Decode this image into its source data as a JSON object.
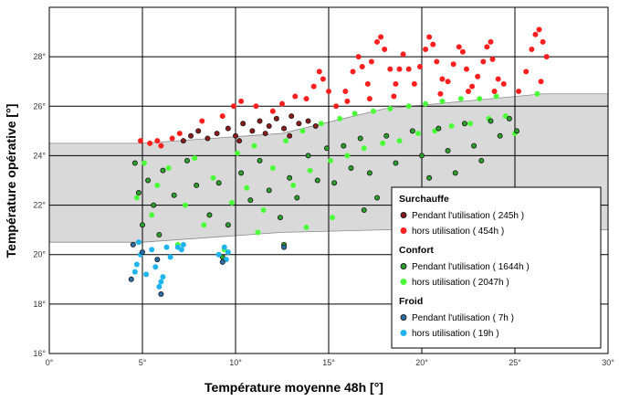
{
  "chart_data": {
    "type": "scatter",
    "xlabel": "Température moyenne 48h [°]",
    "ylabel": "Température opérative [°]",
    "xlim": [
      0,
      30
    ],
    "ylim": [
      16,
      30
    ],
    "x_ticks": [
      "0°",
      "5°",
      "10°",
      "15°",
      "20°",
      "25°",
      "30°"
    ],
    "y_ticks": [
      "16°",
      "18°",
      "20°",
      "22°",
      "24°",
      "26°",
      "28°"
    ],
    "grid": true,
    "comfort_band": [
      {
        "x": 0,
        "lower": 20.5,
        "upper": 24.5
      },
      {
        "x": 5,
        "lower": 20.5,
        "upper": 24.5
      },
      {
        "x": 12.5,
        "lower": 20.9,
        "upper": 24.9
      },
      {
        "x": 18,
        "lower": 21.0,
        "upper": 25.9
      },
      {
        "x": 26.5,
        "lower": 21.0,
        "upper": 26.5
      },
      {
        "x": 30,
        "lower": 21.0,
        "upper": 26.5
      }
    ],
    "band_color": "#d9d9d9",
    "legend": {
      "position": "bottom-right",
      "groups": [
        {
          "title": "Surchauffe",
          "items": [
            {
              "label": "Pendant l'utilisation ( 245h )",
              "series": 0
            },
            {
              "label": "hors utilisation ( 454h )",
              "series": 1
            }
          ]
        },
        {
          "title": "Confort",
          "items": [
            {
              "label": "Pendant l'utilisation ( 1644h )",
              "series": 2
            },
            {
              "label": "hors utilisation ( 2047h )",
              "series": 3
            }
          ]
        },
        {
          "title": "Froid",
          "items": [
            {
              "label": "Pendant l'utilisation ( 7h )",
              "series": 4
            },
            {
              "label": "hors utilisation ( 19h )",
              "series": 5
            }
          ]
        }
      ]
    },
    "series": [
      {
        "fill": "#8b1a1a",
        "stroke": "#1a1a1a",
        "points": [
          [
            7.2,
            24.6
          ],
          [
            7.6,
            24.8
          ],
          [
            8.0,
            25.0
          ],
          [
            8.5,
            24.7
          ],
          [
            9.0,
            24.9
          ],
          [
            9.6,
            25.1
          ],
          [
            10.0,
            24.8
          ],
          [
            10.4,
            25.3
          ],
          [
            10.9,
            25.0
          ],
          [
            11.3,
            25.4
          ],
          [
            11.8,
            25.2
          ],
          [
            12.2,
            25.5
          ],
          [
            12.6,
            25.1
          ],
          [
            13.0,
            25.6
          ],
          [
            13.4,
            25.3
          ],
          [
            13.9,
            25.4
          ],
          [
            14.3,
            25.2
          ],
          [
            10.2,
            24.6
          ],
          [
            11.6,
            24.9
          ],
          [
            12.9,
            24.8
          ]
        ]
      },
      {
        "fill": "#ff1f1f",
        "stroke": "#ff1f1f",
        "points": [
          [
            4.9,
            24.6
          ],
          [
            5.4,
            24.5
          ],
          [
            5.8,
            24.6
          ],
          [
            6.0,
            24.4
          ],
          [
            6.6,
            24.7
          ],
          [
            7.0,
            24.9
          ],
          [
            8.2,
            25.4
          ],
          [
            9.3,
            25.6
          ],
          [
            9.9,
            26.0
          ],
          [
            10.3,
            26.2
          ],
          [
            11.1,
            26.0
          ],
          [
            12.0,
            25.8
          ],
          [
            12.5,
            26.1
          ],
          [
            13.2,
            26.4
          ],
          [
            13.8,
            26.3
          ],
          [
            14.2,
            26.8
          ],
          [
            14.5,
            27.4
          ],
          [
            14.7,
            27.1
          ],
          [
            15.0,
            26.6
          ],
          [
            15.4,
            26.0
          ],
          [
            15.9,
            26.6
          ],
          [
            16.3,
            27.4
          ],
          [
            16.6,
            28.0
          ],
          [
            16.8,
            27.6
          ],
          [
            17.1,
            26.9
          ],
          [
            17.3,
            27.8
          ],
          [
            17.6,
            28.6
          ],
          [
            17.8,
            28.8
          ],
          [
            18.0,
            28.3
          ],
          [
            18.3,
            27.5
          ],
          [
            18.6,
            26.9
          ],
          [
            18.8,
            27.5
          ],
          [
            19.0,
            28.1
          ],
          [
            19.3,
            27.5
          ],
          [
            19.6,
            26.9
          ],
          [
            19.9,
            27.6
          ],
          [
            20.2,
            28.3
          ],
          [
            20.4,
            28.8
          ],
          [
            20.6,
            28.5
          ],
          [
            20.8,
            27.8
          ],
          [
            21.1,
            27.1
          ],
          [
            21.4,
            27.0
          ],
          [
            21.7,
            27.7
          ],
          [
            22.0,
            28.4
          ],
          [
            22.2,
            28.2
          ],
          [
            22.4,
            27.5
          ],
          [
            22.7,
            26.8
          ],
          [
            23.0,
            27.2
          ],
          [
            23.3,
            27.8
          ],
          [
            23.5,
            28.4
          ],
          [
            23.7,
            28.6
          ],
          [
            23.8,
            27.9
          ],
          [
            24.1,
            27.1
          ],
          [
            24.4,
            26.9
          ],
          [
            25.2,
            26.6
          ],
          [
            25.6,
            27.4
          ],
          [
            25.9,
            28.3
          ],
          [
            26.1,
            28.9
          ],
          [
            26.3,
            29.1
          ],
          [
            26.5,
            28.6
          ],
          [
            26.7,
            28.0
          ],
          [
            26.4,
            27.0
          ],
          [
            16.0,
            26.2
          ],
          [
            17.2,
            26.3
          ],
          [
            18.5,
            26.4
          ],
          [
            21.0,
            26.5
          ],
          [
            22.5,
            26.6
          ],
          [
            23.9,
            26.6
          ]
        ]
      },
      {
        "fill": "#2aa02a",
        "stroke": "#1a1a1a",
        "points": [
          [
            4.6,
            23.7
          ],
          [
            4.8,
            22.5
          ],
          [
            5.0,
            21.2
          ],
          [
            5.3,
            23.0
          ],
          [
            5.6,
            22.0
          ],
          [
            5.9,
            20.8
          ],
          [
            6.1,
            23.4
          ],
          [
            6.7,
            22.4
          ],
          [
            7.4,
            23.8
          ],
          [
            7.9,
            22.8
          ],
          [
            8.6,
            21.6
          ],
          [
            9.1,
            22.9
          ],
          [
            9.6,
            21.2
          ],
          [
            10.3,
            23.3
          ],
          [
            10.8,
            22.2
          ],
          [
            11.3,
            23.8
          ],
          [
            11.8,
            22.6
          ],
          [
            12.4,
            21.5
          ],
          [
            12.9,
            23.1
          ],
          [
            13.3,
            22.3
          ],
          [
            13.9,
            24.0
          ],
          [
            14.4,
            23.0
          ],
          [
            14.9,
            24.3
          ],
          [
            15.3,
            22.9
          ],
          [
            15.8,
            24.4
          ],
          [
            16.2,
            23.5
          ],
          [
            16.7,
            24.7
          ],
          [
            17.2,
            23.3
          ],
          [
            17.6,
            22.3
          ],
          [
            18.1,
            24.8
          ],
          [
            18.6,
            23.7
          ],
          [
            19.0,
            22.6
          ],
          [
            19.5,
            25.0
          ],
          [
            20.0,
            24.0
          ],
          [
            20.4,
            23.1
          ],
          [
            20.9,
            25.1
          ],
          [
            21.4,
            24.2
          ],
          [
            21.8,
            23.3
          ],
          [
            22.3,
            25.3
          ],
          [
            22.8,
            24.4
          ],
          [
            23.2,
            23.8
          ],
          [
            23.7,
            25.4
          ],
          [
            24.2,
            24.8
          ],
          [
            24.7,
            25.5
          ],
          [
            25.1,
            25.0
          ],
          [
            16.9,
            21.8
          ],
          [
            12.6,
            20.4
          ],
          [
            9.3,
            19.9
          ]
        ]
      },
      {
        "fill": "#4cff3a",
        "stroke": "#4cff3a",
        "points": [
          [
            4.7,
            22.3
          ],
          [
            5.1,
            23.7
          ],
          [
            5.5,
            21.6
          ],
          [
            5.8,
            22.8
          ],
          [
            6.4,
            23.5
          ],
          [
            6.9,
            20.4
          ],
          [
            7.3,
            22.0
          ],
          [
            7.8,
            23.9
          ],
          [
            8.3,
            21.2
          ],
          [
            8.8,
            23.1
          ],
          [
            9.4,
            20.2
          ],
          [
            9.8,
            22.1
          ],
          [
            10.1,
            24.1
          ],
          [
            10.6,
            22.7
          ],
          [
            11.0,
            24.4
          ],
          [
            11.5,
            21.8
          ],
          [
            12.0,
            23.5
          ],
          [
            12.7,
            24.6
          ],
          [
            13.1,
            22.8
          ],
          [
            13.6,
            25.0
          ],
          [
            14.0,
            23.4
          ],
          [
            14.6,
            25.3
          ],
          [
            15.1,
            23.8
          ],
          [
            15.6,
            25.5
          ],
          [
            16.0,
            24.0
          ],
          [
            16.4,
            25.7
          ],
          [
            16.9,
            24.3
          ],
          [
            17.4,
            25.8
          ],
          [
            17.9,
            24.5
          ],
          [
            18.3,
            25.9
          ],
          [
            18.8,
            24.6
          ],
          [
            19.3,
            26.0
          ],
          [
            19.8,
            24.9
          ],
          [
            20.2,
            26.1
          ],
          [
            20.7,
            25.0
          ],
          [
            21.1,
            26.2
          ],
          [
            21.6,
            25.2
          ],
          [
            22.1,
            26.3
          ],
          [
            22.6,
            25.3
          ],
          [
            23.1,
            26.3
          ],
          [
            23.6,
            25.5
          ],
          [
            24.0,
            26.4
          ],
          [
            24.5,
            25.6
          ],
          [
            25.0,
            24.9
          ],
          [
            26.2,
            26.5
          ],
          [
            15.2,
            21.5
          ],
          [
            13.8,
            21.1
          ],
          [
            11.2,
            20.9
          ]
        ]
      },
      {
        "fill": "#2a6fa8",
        "stroke": "#1a1a1a",
        "points": [
          [
            4.4,
            19.0
          ],
          [
            4.5,
            20.4
          ],
          [
            5.0,
            20.1
          ],
          [
            5.8,
            19.8
          ],
          [
            6.0,
            18.4
          ],
          [
            9.3,
            19.7
          ],
          [
            12.6,
            20.3
          ]
        ]
      },
      {
        "fill": "#1fb4f0",
        "stroke": "#1fb4f0",
        "points": [
          [
            4.6,
            19.3
          ],
          [
            4.7,
            19.6
          ],
          [
            4.9,
            20.0
          ],
          [
            5.2,
            19.2
          ],
          [
            5.5,
            20.2
          ],
          [
            5.7,
            19.5
          ],
          [
            5.9,
            18.7
          ],
          [
            6.0,
            18.9
          ],
          [
            6.1,
            19.1
          ],
          [
            6.3,
            20.3
          ],
          [
            6.5,
            19.9
          ],
          [
            6.9,
            20.3
          ],
          [
            7.1,
            20.2
          ],
          [
            7.2,
            20.4
          ],
          [
            9.1,
            20.0
          ],
          [
            9.4,
            20.3
          ],
          [
            9.5,
            19.8
          ],
          [
            9.6,
            20.1
          ],
          [
            4.8,
            20.5
          ]
        ]
      }
    ]
  }
}
